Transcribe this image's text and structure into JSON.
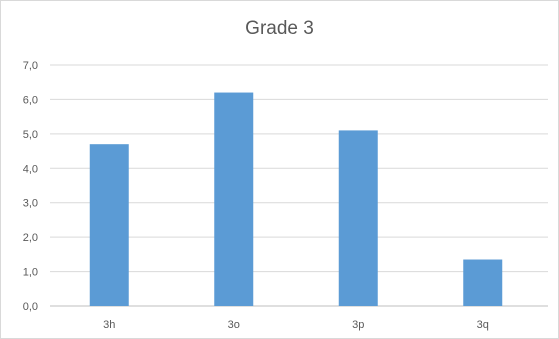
{
  "chart_data": {
    "type": "bar",
    "title": "Grade 3",
    "xlabel": "",
    "ylabel": "",
    "categories": [
      "3h",
      "3o",
      "3p",
      "3q"
    ],
    "values": [
      4.7,
      6.2,
      5.1,
      1.35
    ],
    "ylim": [
      0,
      7
    ],
    "yticks": [
      "0,0",
      "1,0",
      "2,0",
      "3,0",
      "4,0",
      "5,0",
      "6,0",
      "7,0"
    ],
    "grid": true,
    "legend": "none",
    "bar_color": "#5b9bd5",
    "grid_color": "#d9d9d9"
  }
}
